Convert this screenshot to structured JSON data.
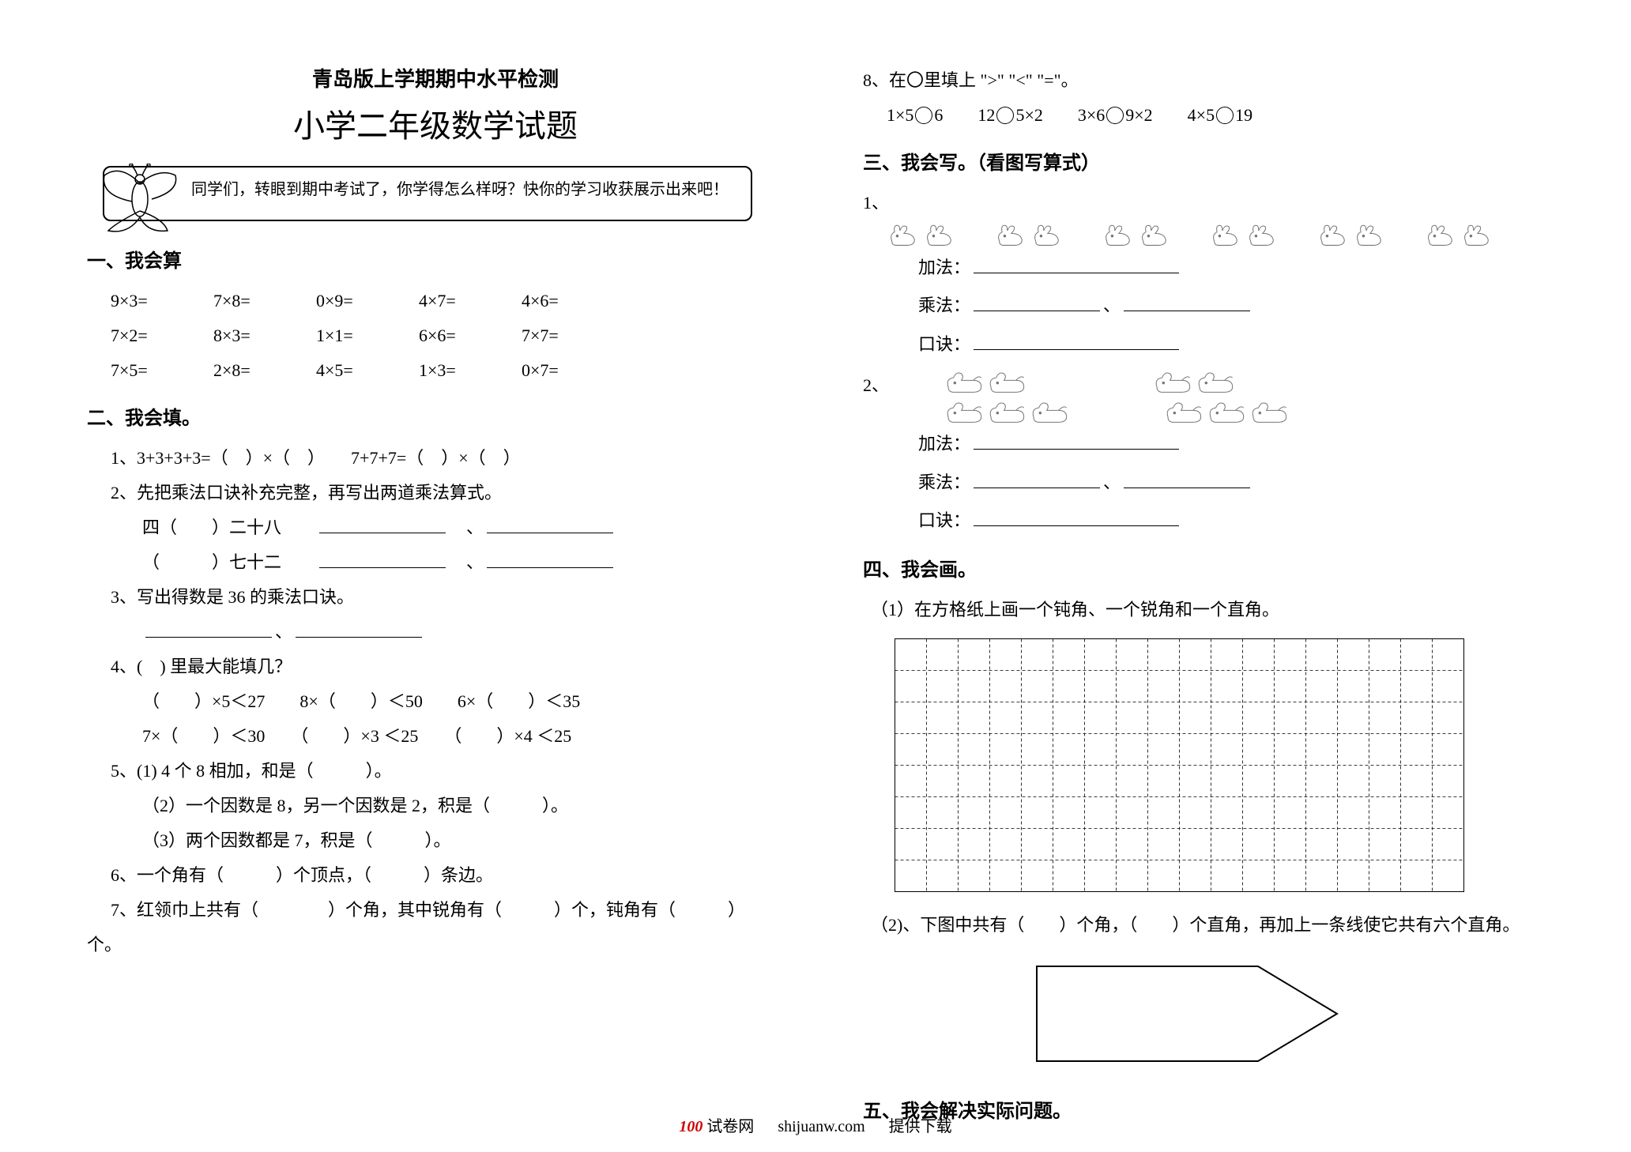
{
  "header": {
    "small": "青岛版上学期期中水平检测",
    "big": "小学二年级数学试题"
  },
  "callout": "同学们，转眼到期中考试了，你学得怎么样呀？快你的学习收获展示出来吧！",
  "sec1": {
    "title": "一、我会算",
    "rows": [
      [
        "9×3=",
        "7×8=",
        "0×9=",
        "4×7=",
        "4×6="
      ],
      [
        "7×2=",
        "8×3=",
        "1×1=",
        "6×6=",
        "7×7="
      ],
      [
        "7×5=",
        "2×8=",
        "4×5=",
        "1×3=",
        "0×7="
      ]
    ]
  },
  "sec2": {
    "title": "二、我会填。",
    "q1": "1、3+3+3+3=（　）×（　）　　7+7+7=（　）×（　）",
    "q2a": "2、先把乘法口诀补充完整，再写出两道乘法算式。",
    "q2b": "四（　　）二十八",
    "q2c": "（　　　）七十二",
    "q3a": "3、写出得数是 36 的乘法口诀。",
    "q4a": "4、(　) 里最大能填几？",
    "q4b": "（　　）×5＜27　　8×（　　）＜50　　6×（　　）＜35",
    "q4c": "7×（　　）＜30　　（　　）×3 ＜25　　（　　）×4 ＜25",
    "q5a": "5、(1) 4 个 8 相加，和是（　　　）。",
    "q5b": "（2）一个因数是 8，另一个因数是 2，积是（　　　）。",
    "q5c": "（3）两个因数都是 7，积是（　　　）。",
    "q6": "6、一个角有（　　　）个顶点，（　　　）条边。",
    "q7a": "7、红领巾上共有（　　　　）个角，其中锐角有（　　　）个，钝角有（　　　）",
    "q7b": "个。",
    "q8a": "8、在〇里填上 \">\" \"<\" \"=\"。",
    "q8b_parts": [
      "1×5",
      "6　　12",
      "5×2　　3×6",
      "9×2　　4×5",
      "19"
    ]
  },
  "sec3": {
    "title": "三、我会写。（看图写算式）",
    "q1_label": "1、",
    "q2_label": "2、",
    "add_label": "加法：",
    "mul_label": "乘法：",
    "sep": "、",
    "rec_label": "口诀：",
    "groups1": [
      2,
      2,
      2,
      2,
      2,
      2
    ],
    "groups2a": [
      2,
      2
    ],
    "groups2b": [
      3,
      3
    ]
  },
  "sec4": {
    "title": "四、我会画。",
    "q1": "（1）在方格纸上画一个钝角、一个锐角和一个直角。",
    "q2": "（2)、下图中共有（　　）个角，（　　）个直角，再加上一条线使它共有六个直角。",
    "grid": {
      "cols": 18,
      "rows": 8,
      "cell": 40
    }
  },
  "sec5": {
    "title": "五、我会解决实际问题。"
  },
  "footer": {
    "brand_num": "100",
    "brand_text": " 试卷网",
    "url": "shijuanw.com",
    "tail": "提供下载"
  }
}
